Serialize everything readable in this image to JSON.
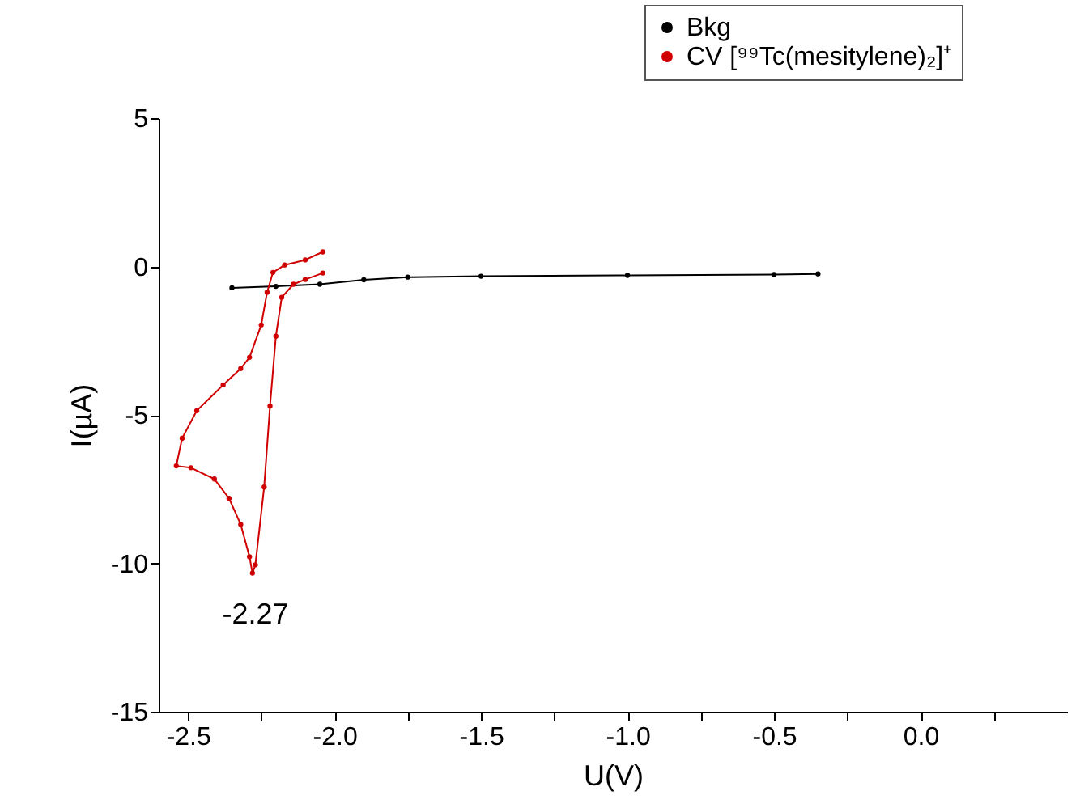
{
  "chart_data": {
    "type": "line",
    "xlabel": "U(V)",
    "ylabel": "I(µA)",
    "xlim": [
      -2.6,
      0.5
    ],
    "ylim": [
      -15,
      5
    ],
    "xticks": [
      -2.5,
      {
        "value": -2.25,
        "label": null
      },
      {
        "value": -2,
        "label": "-2.0"
      },
      {
        "value": -1.75,
        "label": null
      },
      -1.5,
      {
        "value": -1.25,
        "label": null
      },
      {
        "value": -1,
        "label": "-1.0"
      },
      {
        "value": -0.75,
        "label": null
      },
      -0.5,
      {
        "value": -0.25,
        "label": null
      },
      {
        "value": 0,
        "label": "0.0"
      },
      {
        "value": 0.25,
        "label": null
      }
    ],
    "yticks": [
      -15,
      -10,
      -5,
      0,
      5
    ],
    "grid": false,
    "legend": "top right",
    "marker": "circle",
    "line_style": "solid",
    "annotations": [
      {
        "text": "-2.27",
        "x": -2.27,
        "y": -10.33
      }
    ],
    "series": [
      {
        "name": "Bkg",
        "color": "#000000",
        "x": [
          -2.35,
          -2.2,
          -2.05,
          -1.9,
          -1.75,
          -1.5,
          -1.0,
          -0.5,
          -0.35
        ],
        "values": [
          -0.72,
          -0.67,
          -0.6,
          -0.45,
          -0.36,
          -0.33,
          -0.3,
          -0.27,
          -0.25
        ]
      },
      {
        "name": "CV [⁹⁹Tc(mesitylene)₂]⁺",
        "color": "#d00000",
        "x": [
          -2.04,
          -2.1,
          -2.17,
          -2.21,
          -2.23,
          -2.25,
          -2.29,
          -2.32,
          -2.38,
          -2.47,
          -2.52,
          -2.54,
          -2.49,
          -2.41,
          -2.36,
          -2.32,
          -2.29,
          -2.28,
          -2.27,
          -2.24,
          -2.22,
          -2.2,
          -2.18,
          -2.14,
          -2.1,
          -2.04
        ],
        "values": [
          0.49,
          0.22,
          0.05,
          -0.2,
          -0.87,
          -1.97,
          -3.06,
          -3.44,
          -3.99,
          -4.86,
          -5.79,
          -6.72,
          -6.78,
          -7.16,
          -7.81,
          -8.69,
          -9.78,
          -10.33,
          -10.05,
          -7.43,
          -4.7,
          -2.35,
          -1.04,
          -0.6,
          -0.44,
          -0.22
        ]
      }
    ]
  }
}
